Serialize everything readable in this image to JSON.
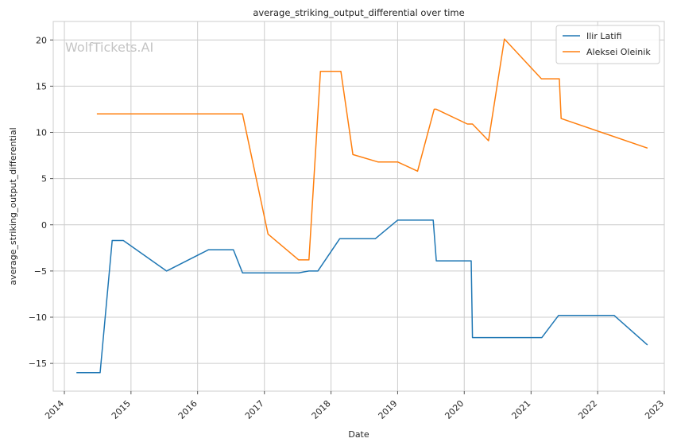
{
  "chart_data": {
    "type": "line",
    "title": "average_striking_output_differential over time",
    "xlabel": "Date",
    "ylabel": "average_striking_output_differential",
    "watermark": "WolfTickets.AI",
    "xlim": [
      "2013-11-01",
      "2023-01-01"
    ],
    "ylim": [
      -18,
      22
    ],
    "x_ticks": [
      "2014",
      "2015",
      "2016",
      "2017",
      "2018",
      "2019",
      "2020",
      "2021",
      "2022",
      "2023"
    ],
    "y_ticks": [
      -15,
      -10,
      -5,
      0,
      5,
      10,
      15,
      20
    ],
    "grid": true,
    "legend_position": "top-right",
    "series": [
      {
        "name": "Ilir Latifi",
        "color": "#1f77b4",
        "points": [
          [
            "2014-03-08",
            -16.0
          ],
          [
            "2014-07-16",
            -16.0
          ],
          [
            "2014-09-20",
            -1.7
          ],
          [
            "2014-11-20",
            -1.7
          ],
          [
            "2015-07-15",
            -5.0
          ],
          [
            "2016-03-01",
            -2.7
          ],
          [
            "2016-07-15",
            -2.7
          ],
          [
            "2016-09-03",
            -5.2
          ],
          [
            "2017-07-08",
            -5.2
          ],
          [
            "2017-09-02",
            -5.0
          ],
          [
            "2017-10-21",
            -5.0
          ],
          [
            "2018-02-18",
            -1.5
          ],
          [
            "2018-09-01",
            -1.5
          ],
          [
            "2019-01-01",
            0.5
          ],
          [
            "2019-07-15",
            0.5
          ],
          [
            "2019-08-01",
            -3.9
          ],
          [
            "2020-02-08",
            -3.9
          ],
          [
            "2020-02-15",
            -12.2
          ],
          [
            "2021-03-01",
            -12.2
          ],
          [
            "2021-06-01",
            -9.8
          ],
          [
            "2022-04-01",
            -9.8
          ],
          [
            "2022-10-01",
            -13.0
          ]
        ]
      },
      {
        "name": "Aleksei Oleinik",
        "color": "#ff7f0e",
        "points": [
          [
            "2014-06-28",
            12.0
          ],
          [
            "2016-09-03",
            12.0
          ],
          [
            "2017-01-21",
            -1.0
          ],
          [
            "2017-07-08",
            -3.8
          ],
          [
            "2017-09-02",
            -3.8
          ],
          [
            "2017-11-04",
            16.6
          ],
          [
            "2018-02-24",
            16.6
          ],
          [
            "2018-05-01",
            7.6
          ],
          [
            "2018-09-15",
            6.8
          ],
          [
            "2019-01-01",
            6.8
          ],
          [
            "2019-04-20",
            5.8
          ],
          [
            "2019-07-20",
            12.5
          ],
          [
            "2019-08-01",
            12.5
          ],
          [
            "2020-01-18",
            10.9
          ],
          [
            "2020-02-15",
            10.9
          ],
          [
            "2020-05-13",
            9.1
          ],
          [
            "2020-08-08",
            20.1
          ],
          [
            "2021-02-27",
            15.8
          ],
          [
            "2021-06-05",
            15.8
          ],
          [
            "2021-06-15",
            11.5
          ],
          [
            "2022-10-01",
            8.3
          ]
        ]
      }
    ]
  }
}
